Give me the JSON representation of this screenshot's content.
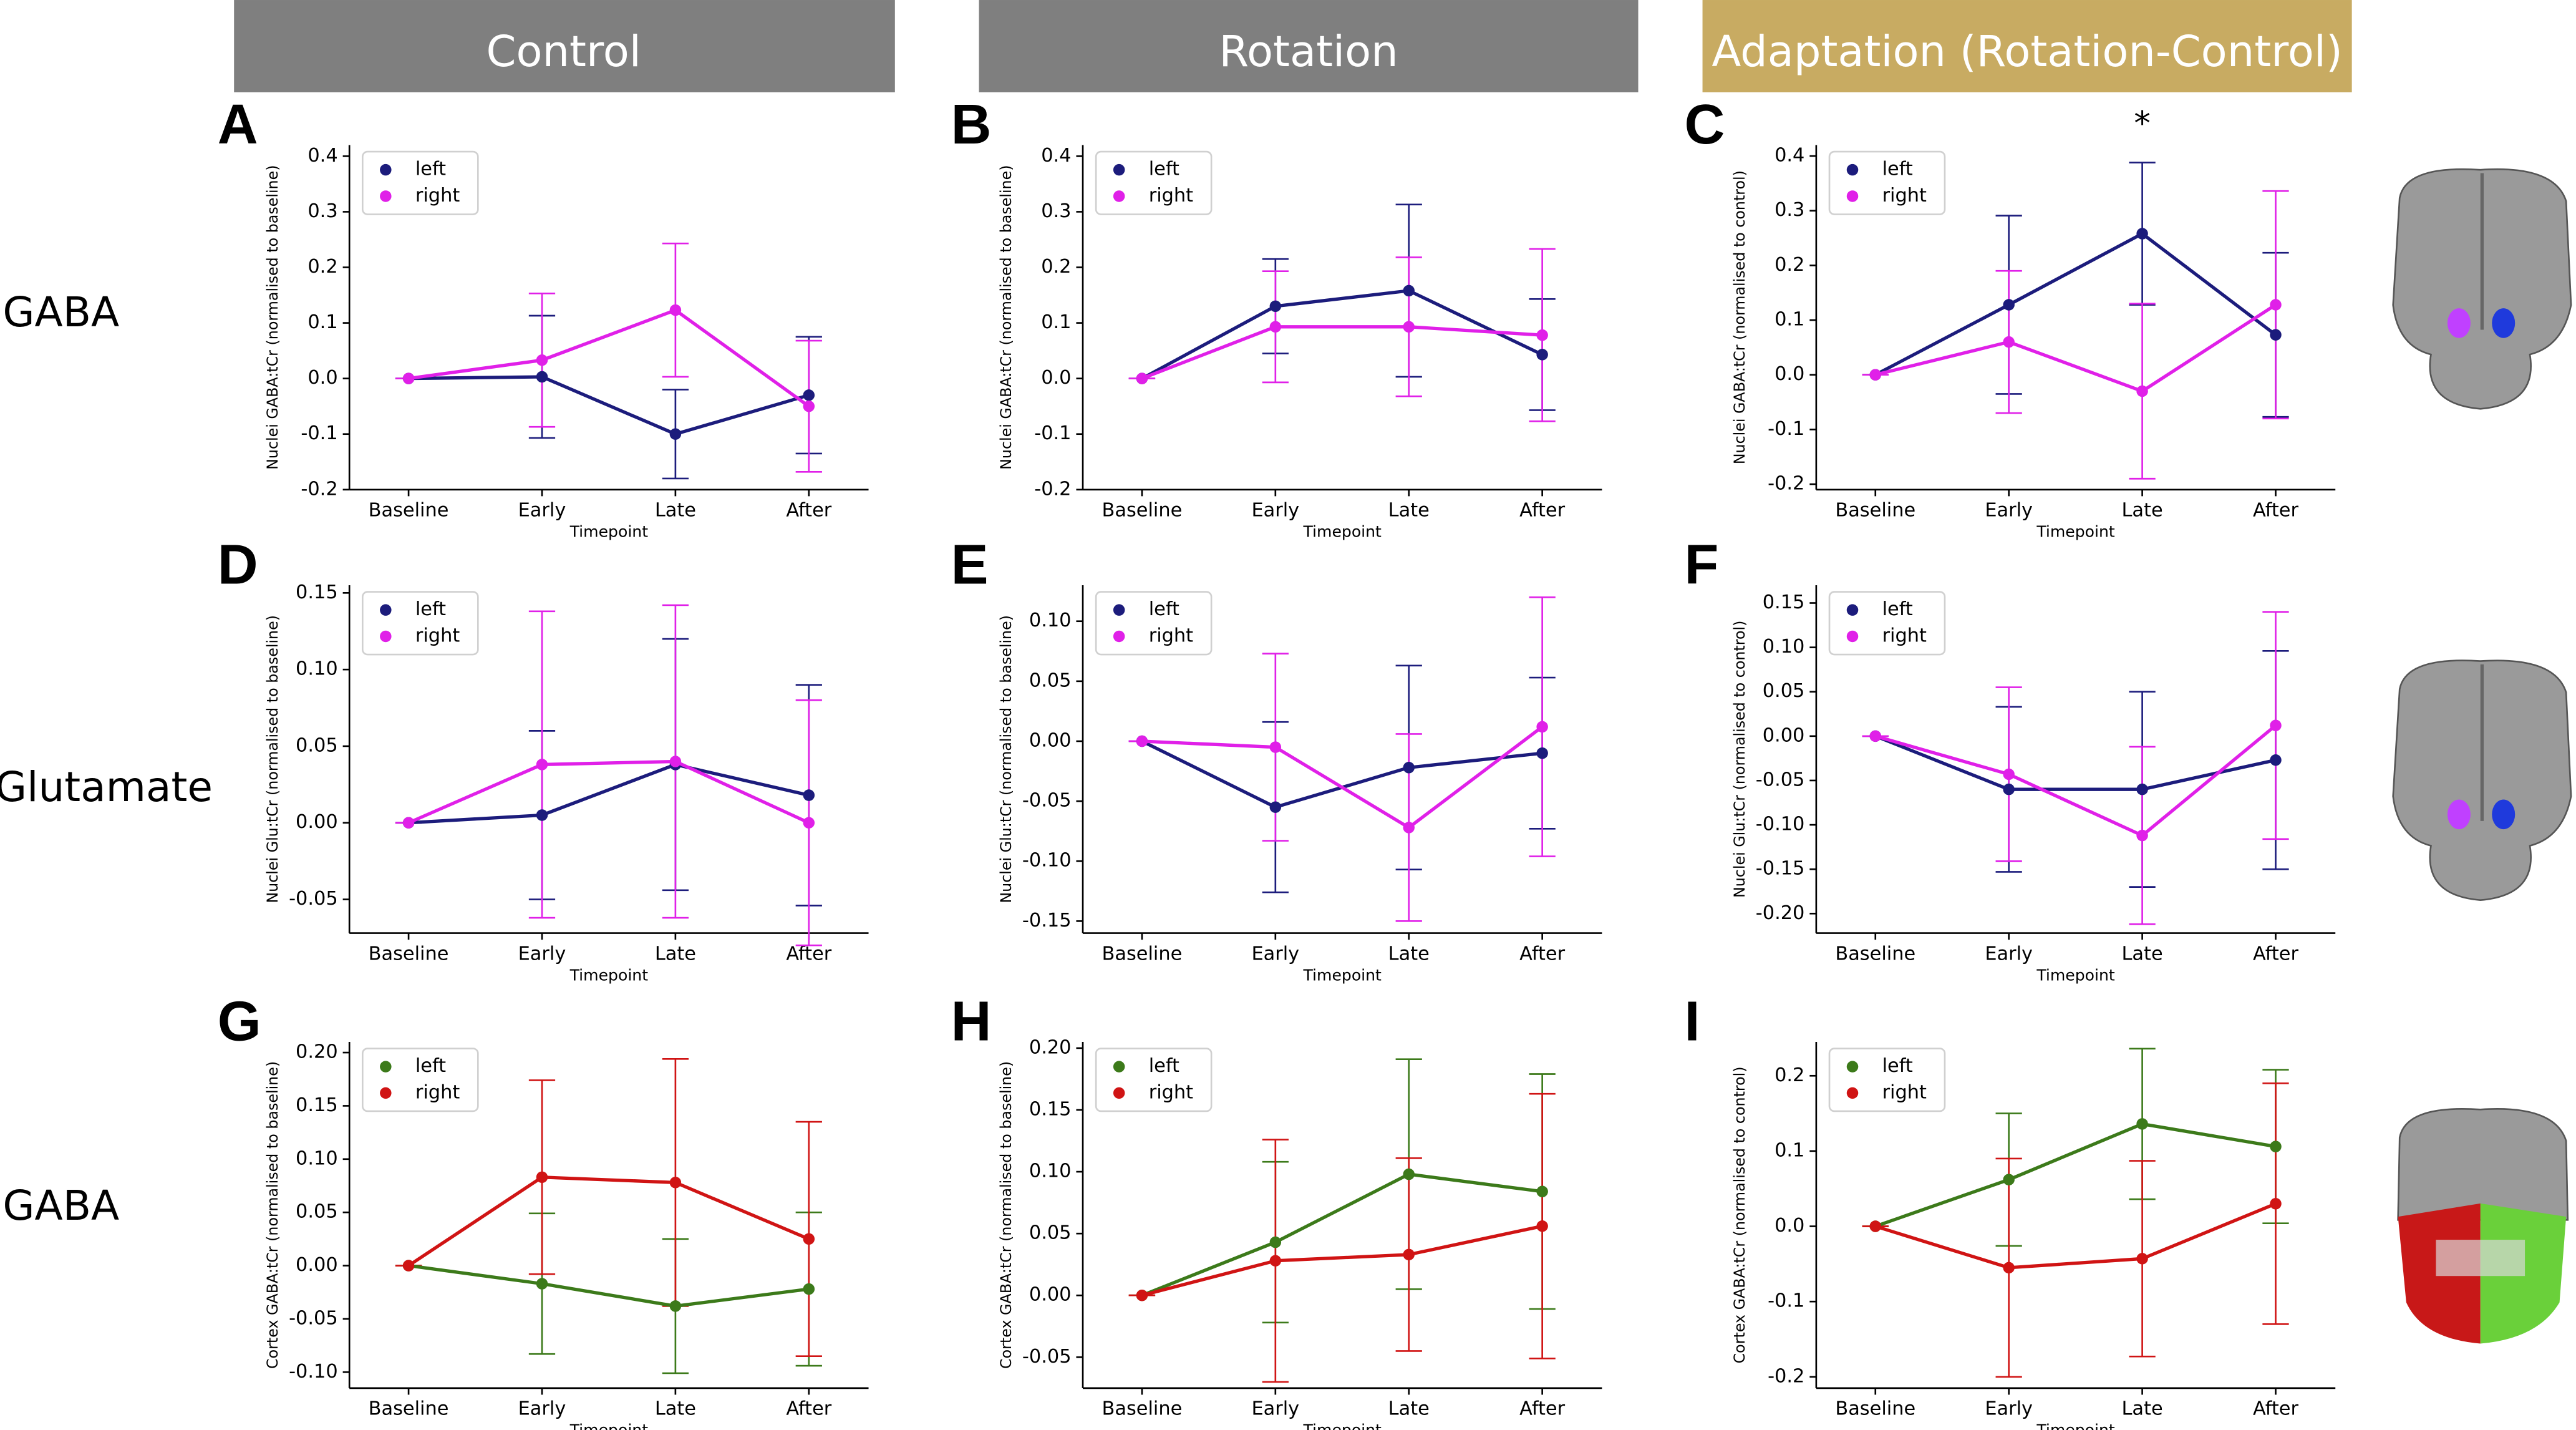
{
  "column_headers": [
    "Control",
    "Rotation",
    "Adaptation (Rotation-Control)"
  ],
  "row_labels": [
    "GABA",
    "Glutamate",
    "GABA"
  ],
  "chart_data": [
    {
      "type": "line",
      "panel": "A",
      "ylabel": "Nuclei GABA:tCr (normalised to baseline)",
      "xlabel": "Timepoint",
      "categories": [
        "Baseline",
        "Early",
        "Late",
        "After"
      ],
      "ylim": [
        -0.2,
        0.42
      ],
      "yticks": [
        -0.2,
        -0.1,
        {
          "value": 0,
          "label": "0.0"
        },
        0.1,
        0.2,
        0.3,
        0.4
      ],
      "legend": "upper left",
      "series": [
        {
          "name": "left",
          "color": "#1c1c7c",
          "values": [
            0,
            0.003,
            -0.1,
            -0.03
          ],
          "errors": [
            0,
            0.11,
            0.08,
            0.105
          ]
        },
        {
          "name": "right",
          "color": "#e020e8",
          "values": [
            0,
            0.033,
            0.123,
            -0.05
          ],
          "errors": [
            0,
            0.12,
            0.12,
            0.118
          ]
        }
      ]
    },
    {
      "type": "line",
      "panel": "B",
      "ylabel": "Nuclei GABA:tCr (normalised to baseline)",
      "xlabel": "Timepoint",
      "categories": [
        "Baseline",
        "Early",
        "Late",
        "After"
      ],
      "ylim": [
        -0.2,
        0.42
      ],
      "yticks": [
        -0.2,
        -0.1,
        {
          "value": 0,
          "label": "0.0"
        },
        0.1,
        0.2,
        0.3,
        0.4
      ],
      "legend": "upper left",
      "series": [
        {
          "name": "left",
          "color": "#1c1c7c",
          "values": [
            0,
            0.13,
            0.158,
            0.043
          ],
          "errors": [
            0,
            0.085,
            0.155,
            0.1
          ]
        },
        {
          "name": "right",
          "color": "#e020e8",
          "values": [
            0,
            0.093,
            0.093,
            0.078
          ],
          "errors": [
            0,
            0.1,
            0.125,
            0.155
          ]
        }
      ]
    },
    {
      "type": "line",
      "panel": "C",
      "ylabel": "Nuclei GABA:tCr (normalised to control)",
      "xlabel": "Timepoint",
      "annotation": "*",
      "categories": [
        "Baseline",
        "Early",
        "Late",
        "After"
      ],
      "ylim": [
        -0.21,
        0.42
      ],
      "yticks": [
        -0.2,
        -0.1,
        {
          "value": 0,
          "label": "0.0"
        },
        0.1,
        0.2,
        0.3,
        0.4
      ],
      "legend": "upper left",
      "series": [
        {
          "name": "left",
          "color": "#1c1c7c",
          "values": [
            0,
            0.128,
            0.258,
            0.073
          ],
          "errors": [
            0,
            0.163,
            0.13,
            0.15
          ]
        },
        {
          "name": "right",
          "color": "#e020e8",
          "values": [
            0,
            0.06,
            -0.03,
            0.128
          ],
          "errors": [
            0,
            0.13,
            0.16,
            0.208
          ]
        }
      ]
    },
    {
      "type": "line",
      "panel": "D",
      "ylabel": "Nuclei Glu:tCr (normalised to baseline)",
      "xlabel": "Timepoint",
      "categories": [
        "Baseline",
        "Early",
        "Late",
        "After"
      ],
      "ylim": [
        -0.072,
        0.155
      ],
      "yticks": [
        -0.05,
        {
          "value": 0,
          "label": "0.00"
        },
        0.05,
        {
          "value": 0.1,
          "label": "0.10"
        },
        0.15
      ],
      "legend": "upper left",
      "series": [
        {
          "name": "left",
          "color": "#1c1c7c",
          "values": [
            0,
            0.005,
            0.038,
            0.018
          ],
          "errors": [
            0,
            0.055,
            0.082,
            0.072
          ]
        },
        {
          "name": "right",
          "color": "#e020e8",
          "values": [
            0,
            0.038,
            0.04,
            0
          ],
          "errors": [
            0,
            0.1,
            0.102,
            0.08
          ]
        }
      ]
    },
    {
      "type": "line",
      "panel": "E",
      "ylabel": "Nuclei Glu:tCr (normalised to baseline)",
      "xlabel": "Timepoint",
      "categories": [
        "Baseline",
        "Early",
        "Late",
        "After"
      ],
      "ylim": [
        -0.16,
        0.13
      ],
      "yticks": [
        -0.15,
        {
          "value": -0.1,
          "label": "-0.10"
        },
        -0.05,
        {
          "value": 0,
          "label": "0.00"
        },
        0.05,
        {
          "value": 0.1,
          "label": "0.10"
        }
      ],
      "legend": "upper left",
      "series": [
        {
          "name": "left",
          "color": "#1c1c7c",
          "values": [
            0,
            -0.055,
            -0.022,
            -0.01
          ],
          "errors": [
            0,
            0.071,
            0.085,
            0.063
          ]
        },
        {
          "name": "right",
          "color": "#e020e8",
          "values": [
            0,
            -0.005,
            -0.072,
            0.012
          ],
          "errors": [
            0,
            0.078,
            0.078,
            0.108
          ]
        }
      ]
    },
    {
      "type": "line",
      "panel": "F",
      "ylabel": "Nuclei Glu:tCr (normalised to control)",
      "xlabel": "Timepoint",
      "categories": [
        "Baseline",
        "Early",
        "Late",
        "After"
      ],
      "ylim": [
        -0.222,
        0.17
      ],
      "yticks": [
        {
          "value": -0.2,
          "label": "-0.20"
        },
        -0.15,
        {
          "value": -0.1,
          "label": "-0.10"
        },
        -0.05,
        {
          "value": 0,
          "label": "0.00"
        },
        0.05,
        {
          "value": 0.1,
          "label": "0.10"
        },
        0.15
      ],
      "legend": "upper left",
      "series": [
        {
          "name": "left",
          "color": "#1c1c7c",
          "values": [
            0,
            -0.06,
            -0.06,
            -0.027
          ],
          "errors": [
            0,
            0.093,
            0.11,
            0.123
          ]
        },
        {
          "name": "right",
          "color": "#e020e8",
          "values": [
            0,
            -0.043,
            -0.112,
            0.012
          ],
          "errors": [
            0,
            0.098,
            0.1,
            0.128
          ]
        }
      ]
    },
    {
      "type": "line",
      "panel": "G",
      "ylabel": "Cortex GABA:tCr (normalised to baseline)",
      "xlabel": "Timepoint",
      "categories": [
        "Baseline",
        "Early",
        "Late",
        "After"
      ],
      "ylim": [
        -0.115,
        0.21
      ],
      "yticks": [
        {
          "value": -0.1,
          "label": "-0.10"
        },
        -0.05,
        {
          "value": 0,
          "label": "0.00"
        },
        0.05,
        {
          "value": 0.1,
          "label": "0.10"
        },
        0.15,
        {
          "value": 0.2,
          "label": "0.20"
        }
      ],
      "legend": "upper left",
      "series": [
        {
          "name": "left",
          "color": "#3c7a1a",
          "values": [
            0,
            -0.017,
            -0.038,
            -0.022
          ],
          "errors": [
            0,
            0.066,
            0.063,
            0.072
          ]
        },
        {
          "name": "right",
          "color": "#d01414",
          "values": [
            0,
            0.083,
            0.078,
            0.025
          ],
          "errors": [
            0,
            0.091,
            0.116,
            0.11
          ]
        }
      ]
    },
    {
      "type": "line",
      "panel": "H",
      "ylabel": "Cortex GABA:tCr (normalised to baseline)",
      "xlabel": "Timepoint",
      "categories": [
        "Baseline",
        "Early",
        "Late",
        "After"
      ],
      "ylim": [
        -0.075,
        0.205
      ],
      "yticks": [
        -0.05,
        {
          "value": 0,
          "label": "0.00"
        },
        0.05,
        {
          "value": 0.1,
          "label": "0.10"
        },
        0.15,
        {
          "value": 0.2,
          "label": "0.20"
        }
      ],
      "legend": "upper left",
      "series": [
        {
          "name": "left",
          "color": "#3c7a1a",
          "values": [
            0,
            0.043,
            0.098,
            0.084
          ],
          "errors": [
            0,
            0.065,
            0.093,
            0.095
          ]
        },
        {
          "name": "right",
          "color": "#d01414",
          "values": [
            0,
            0.028,
            0.033,
            0.056
          ],
          "errors": [
            0,
            0.098,
            0.078,
            0.107
          ]
        }
      ]
    },
    {
      "type": "line",
      "panel": "I",
      "ylabel": "Cortex GABA:tCr (normalised to control)",
      "xlabel": "Timepoint",
      "categories": [
        "Baseline",
        "Early",
        "Late",
        "After"
      ],
      "ylim": [
        -0.215,
        0.245
      ],
      "yticks": [
        -0.2,
        -0.1,
        {
          "value": 0,
          "label": "0.0"
        },
        0.1,
        0.2
      ],
      "legend": "upper left",
      "series": [
        {
          "name": "left",
          "color": "#3c7a1a",
          "values": [
            0,
            0.062,
            0.136,
            0.106
          ],
          "errors": [
            0,
            0.088,
            0.1,
            0.102
          ]
        },
        {
          "name": "right",
          "color": "#d01414",
          "values": [
            0,
            -0.055,
            -0.043,
            0.03
          ],
          "errors": [
            0,
            0.145,
            0.13,
            0.16
          ]
        }
      ]
    }
  ]
}
